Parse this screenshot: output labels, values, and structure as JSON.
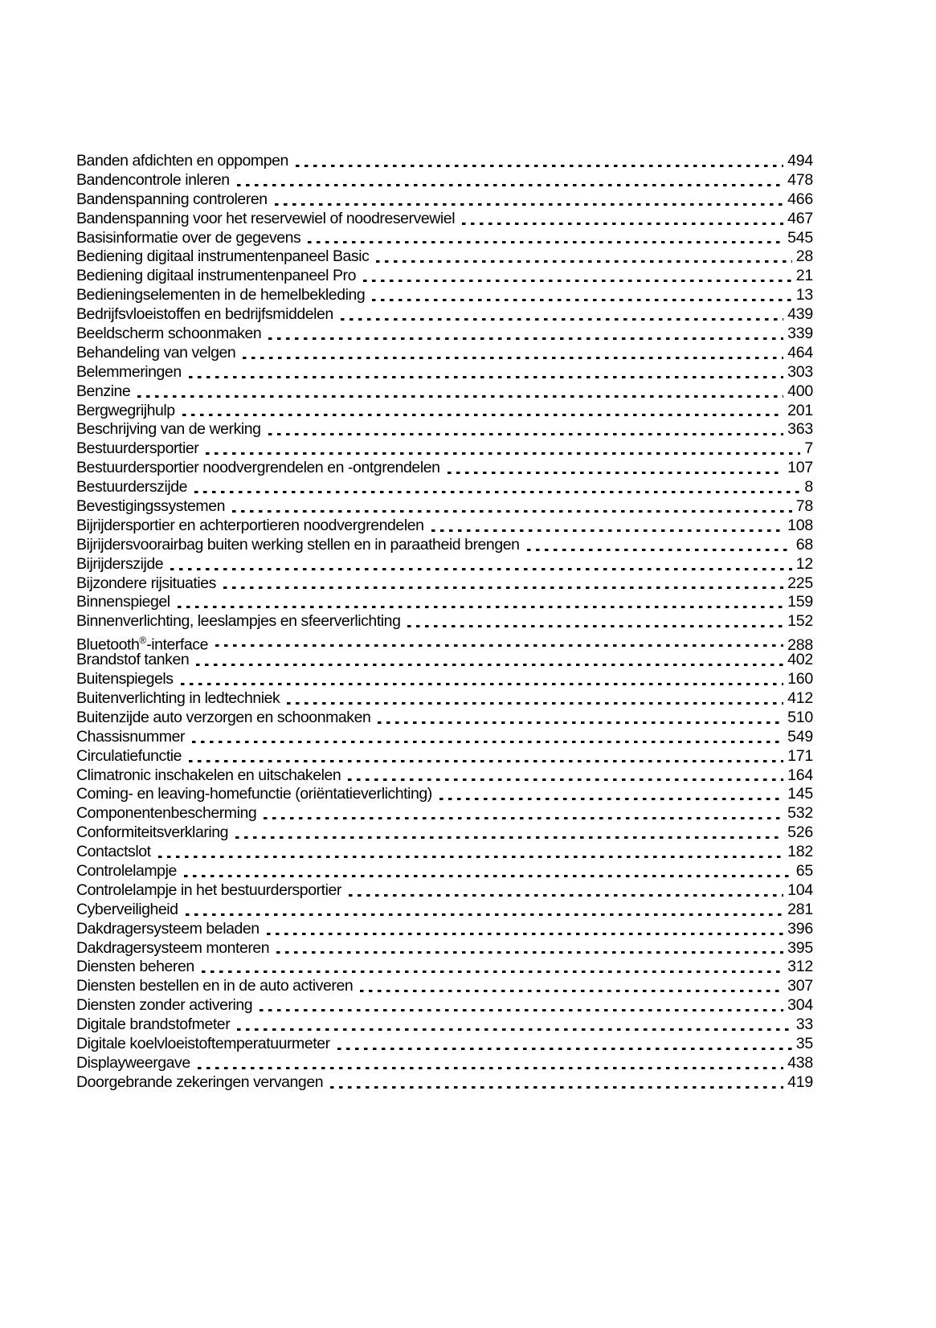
{
  "toc": {
    "entries": [
      {
        "label": "Banden afdichten en oppompen",
        "page": "494"
      },
      {
        "label": "Bandencontrole inleren",
        "page": "478"
      },
      {
        "label": "Bandenspanning controleren",
        "page": "466"
      },
      {
        "label": "Bandenspanning voor het reservewiel of noodreservewiel",
        "page": "467"
      },
      {
        "label": "Basisinformatie over de gegevens",
        "page": "545"
      },
      {
        "label": "Bediening digitaal instrumentenpaneel Basic",
        "page": "28"
      },
      {
        "label": "Bediening digitaal instrumentenpaneel Pro",
        "page": "21"
      },
      {
        "label": "Bedieningselementen in de hemelbekleding",
        "page": "13"
      },
      {
        "label": "Bedrijfsvloeistoffen en bedrijfsmiddelen",
        "page": "439"
      },
      {
        "label": "Beeldscherm schoonmaken",
        "page": "339"
      },
      {
        "label": "Behandeling van velgen",
        "page": "464"
      },
      {
        "label": "Belemmeringen",
        "page": "303"
      },
      {
        "label": "Benzine",
        "page": "400"
      },
      {
        "label": "Bergwegrijhulp",
        "page": "201"
      },
      {
        "label": "Beschrijving van de werking",
        "page": "363"
      },
      {
        "label": "Bestuurdersportier",
        "page": "7"
      },
      {
        "label": "Bestuurdersportier noodvergrendelen en -ontgrendelen",
        "page": "107"
      },
      {
        "label": "Bestuurderszijde",
        "page": "8"
      },
      {
        "label": "Bevestigingssystemen",
        "page": "78"
      },
      {
        "label": "Bijrijdersportier en achterportieren noodvergrendelen",
        "page": "108"
      },
      {
        "label": "Bijrijdersvoorairbag buiten werking stellen en in paraatheid brengen",
        "page": "68"
      },
      {
        "label": "Bijrijderszijde",
        "page": "12"
      },
      {
        "label": "Bijzondere rijsituaties",
        "page": "225"
      },
      {
        "label": "Binnenspiegel",
        "page": "159"
      },
      {
        "label": "Binnenverlichting, leeslampjes en sfeerverlichting",
        "page": "152"
      },
      {
        "label": "Bluetooth®-interface",
        "page": "288"
      },
      {
        "label": "Brandstof tanken",
        "page": "402"
      },
      {
        "label": "Buitenspiegels",
        "page": "160"
      },
      {
        "label": "Buitenverlichting in ledtechniek",
        "page": "412"
      },
      {
        "label": "Buitenzijde auto verzorgen en schoonmaken",
        "page": "510"
      },
      {
        "label": "Chassisnummer",
        "page": "549"
      },
      {
        "label": "Circulatiefunctie",
        "page": "171"
      },
      {
        "label": "Climatronic inschakelen en uitschakelen",
        "page": "164"
      },
      {
        "label": "Coming- en leaving-homefunctie (oriëntatieverlichting)",
        "page": "145"
      },
      {
        "label": "Componentenbescherming",
        "page": "532"
      },
      {
        "label": "Conformiteitsverklaring",
        "page": "526"
      },
      {
        "label": "Contactslot",
        "page": "182"
      },
      {
        "label": "Controlelampje",
        "page": "65"
      },
      {
        "label": "Controlelampje in het bestuurdersportier",
        "page": "104"
      },
      {
        "label": "Cyberveiligheid",
        "page": "281"
      },
      {
        "label": "Dakdragersysteem beladen",
        "page": "396"
      },
      {
        "label": "Dakdragersysteem monteren",
        "page": "395"
      },
      {
        "label": "Diensten beheren",
        "page": "312"
      },
      {
        "label": "Diensten bestellen en in de auto activeren",
        "page": "307"
      },
      {
        "label": "Diensten zonder activering",
        "page": "304"
      },
      {
        "label": "Digitale brandstofmeter",
        "page": "33"
      },
      {
        "label": "Digitale koelvloeistoftemperatuurmeter",
        "page": "35"
      },
      {
        "label": "Displayweergave",
        "page": "438"
      },
      {
        "label": "Doorgebrande zekeringen vervangen",
        "page": "419"
      }
    ]
  }
}
